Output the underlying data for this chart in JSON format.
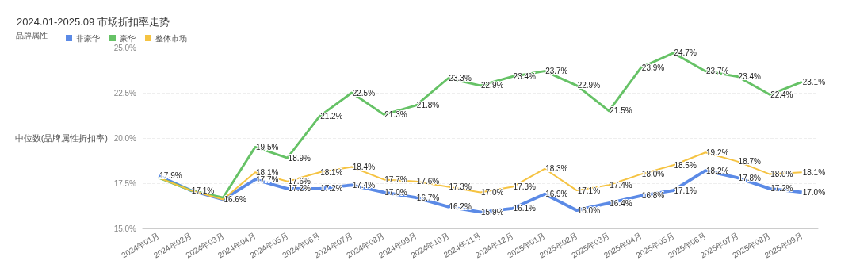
{
  "chart_data": {
    "type": "line",
    "title": "2024.01-2025.09 市场折扣率走势",
    "ylabel": "中位数(品牌属性折扣率)",
    "legend_title": "品牌属性",
    "legend": "top left",
    "grid": "y",
    "marker": "none",
    "line_style": "solid",
    "categories": [
      "2024年01月",
      "2024年02月",
      "2024年03月",
      "2024年04月",
      "2024年05月",
      "2024年06月",
      "2024年07月",
      "2024年08月",
      "2024年09月",
      "2024年10月",
      "2024年11月",
      "2024年12月",
      "2025年01月",
      "2025年02月",
      "2025年03月",
      "2025年04月",
      "2025年05月",
      "2025年06月",
      "2025年07月",
      "2025年08月",
      "2025年09月"
    ],
    "ylim": [
      15,
      25
    ],
    "yticks": [
      {
        "value": 15,
        "label": "15.0%"
      },
      {
        "value": 17.5,
        "label": "17.5%"
      },
      {
        "value": 20,
        "label": "20.0%"
      },
      {
        "value": 22.5,
        "label": "22.5%"
      },
      {
        "value": 25,
        "label": "25.0%"
      }
    ],
    "series": [
      {
        "name": "非豪华",
        "color": "#5b8ae6",
        "values": [
          17.9,
          17.1,
          16.6,
          17.7,
          17.2,
          17.2,
          17.4,
          17.0,
          16.7,
          16.2,
          15.9,
          16.1,
          16.9,
          16.0,
          16.4,
          16.8,
          17.1,
          18.2,
          17.8,
          17.2,
          17.0
        ],
        "value_labels": [
          "17.9%",
          null,
          "16.6%",
          "17.7%",
          "17.2%",
          "17.2%",
          "17.4%",
          "17.0%",
          "16.7%",
          "16.2%",
          "15.9%",
          "16.1%",
          "16.9%",
          "16.0%",
          "16.4%",
          "16.8%",
          "17.1%",
          "18.2%",
          "17.8%",
          "17.2%",
          "17.0%"
        ]
      },
      {
        "name": "豪华",
        "color": "#66c266",
        "values": [
          17.8,
          17.1,
          16.7,
          19.5,
          18.9,
          21.2,
          22.5,
          21.3,
          21.8,
          23.3,
          22.9,
          23.4,
          23.7,
          22.9,
          21.5,
          23.9,
          24.7,
          23.7,
          23.4,
          22.4,
          23.1
        ],
        "value_labels": [
          null,
          "17.1%",
          null,
          "19.5%",
          "18.9%",
          "21.2%",
          "22.5%",
          "21.3%",
          "21.8%",
          "23.3%",
          "22.9%",
          "23.4%",
          "23.7%",
          "22.9%",
          "21.5%",
          "23.9%",
          "24.7%",
          "23.7%",
          "23.4%",
          "22.4%",
          "23.1%"
        ]
      },
      {
        "name": "整体市场",
        "color": "#f5c342",
        "values": [
          17.8,
          17.1,
          16.6,
          18.1,
          17.6,
          18.1,
          18.4,
          17.7,
          17.6,
          17.3,
          17.0,
          17.3,
          18.3,
          17.1,
          17.4,
          18.0,
          18.5,
          19.2,
          18.7,
          18.0,
          18.1
        ],
        "value_labels": [
          null,
          null,
          null,
          "18.1%",
          "17.6%",
          "18.1%",
          "18.4%",
          "17.7%",
          "17.6%",
          "17.3%",
          "17.0%",
          "17.3%",
          "18.3%",
          "17.1%",
          "17.4%",
          "18.0%",
          "18.5%",
          "19.2%",
          "18.7%",
          "18.0%",
          "18.1%"
        ]
      }
    ]
  }
}
